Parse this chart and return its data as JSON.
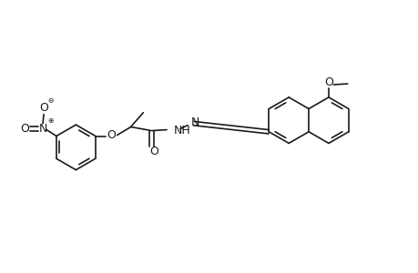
{
  "bg_color": "#ffffff",
  "line_color": "#1a1a1a",
  "line_width": 1.2,
  "figsize": [
    4.6,
    3.0
  ],
  "dpi": 100,
  "xlim": [
    0,
    4.6
  ],
  "ylim": [
    0,
    3.0
  ]
}
